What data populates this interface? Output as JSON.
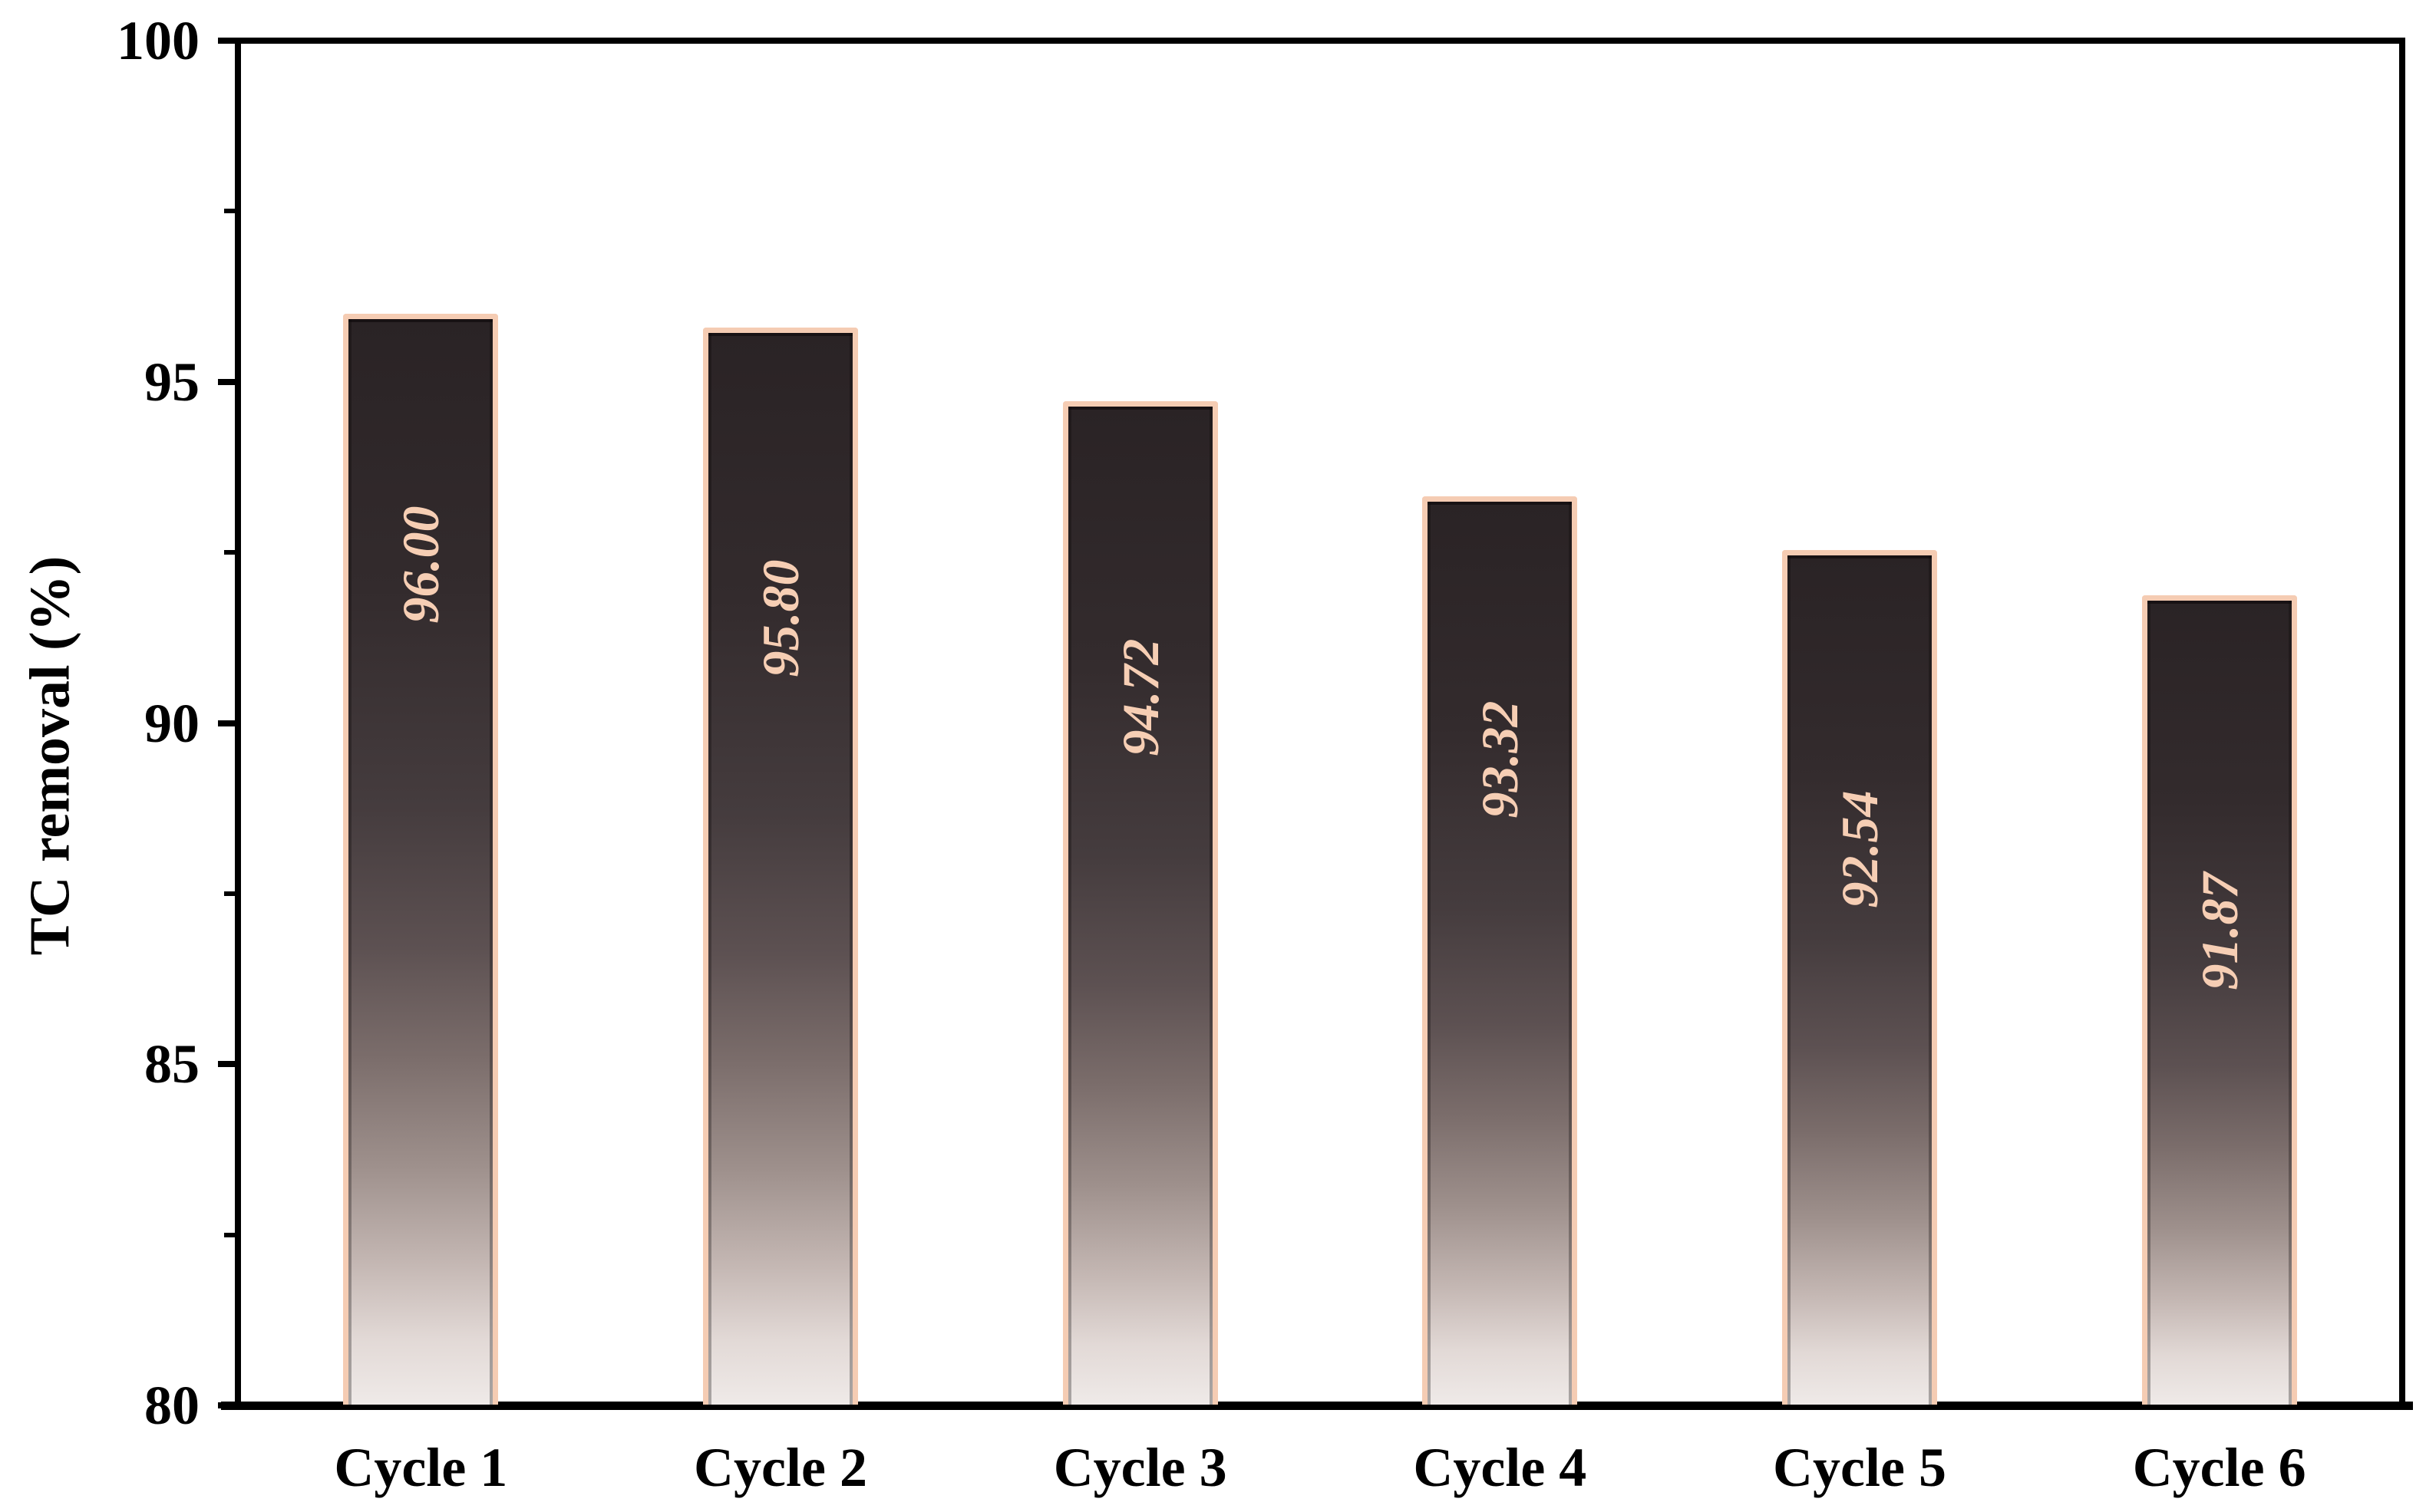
{
  "chart_data": {
    "type": "bar",
    "title": "",
    "xlabel": "",
    "ylabel": "TC removal (%)",
    "categories": [
      "Cycle 1",
      "Cycle 2",
      "Cycle 3",
      "Cycle 4",
      "Cycle 5",
      "Cycle 6"
    ],
    "values": [
      96.0,
      95.8,
      94.72,
      93.32,
      92.54,
      91.87
    ],
    "bar_value_labels": [
      "96.00",
      "95.80",
      "94.72",
      "93.32",
      "92.54",
      "91.87"
    ],
    "ylim": [
      80,
      100
    ],
    "ytick_major_values": [
      80,
      85,
      90,
      95,
      100
    ],
    "ytick_major_labels": [
      "80",
      "85",
      "90",
      "95",
      "100"
    ],
    "ytick_minor_values": [
      82.5,
      87.5,
      92.5,
      97.5
    ],
    "grid": false,
    "legend": null,
    "colors": {
      "background": "#ffffff",
      "axis": "#000000",
      "text": "#000000",
      "bar_border": "#f5ccb3",
      "bar_value_text": "#f6ceb4",
      "bar_gradient_top": "#2a2325",
      "bar_gradient_mid": "#5d5152",
      "bar_gradient_bottom": "#efeae8"
    }
  }
}
